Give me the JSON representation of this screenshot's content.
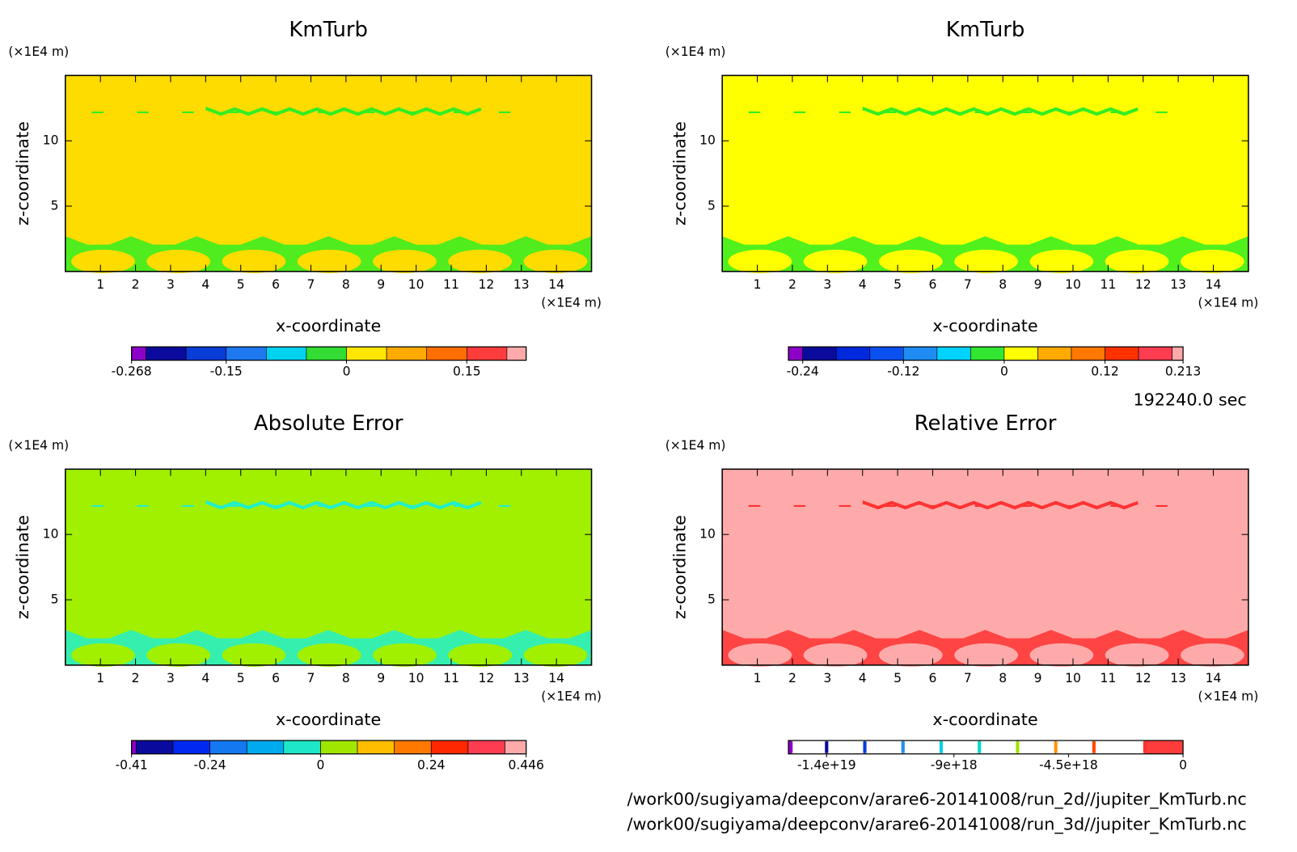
{
  "chart_data": [
    {
      "type": "contour",
      "title": "KmTurb",
      "xlabel": "x-coordinate",
      "ylabel": "z-coordinate",
      "x_unit": "(×1E4 m)",
      "y_unit": "(×1E4 m)",
      "xlim": [
        0,
        15
      ],
      "ylim": [
        0,
        15
      ],
      "xticks": [
        1,
        2,
        3,
        4,
        5,
        6,
        7,
        8,
        9,
        10,
        11,
        12,
        13,
        14
      ],
      "yticks": [
        5,
        10
      ],
      "background": "#ffdc00",
      "feature_color": "#33ee22",
      "colorbar": {
        "lim": [
          -0.268,
          0.224
        ],
        "levels": [
          -0.25,
          -0.2,
          -0.15,
          -0.1,
          -0.05,
          0,
          0.05,
          0.1,
          0.15,
          0.2
        ],
        "colors": [
          "#8c00c8",
          "#0a0a9c",
          "#0a3cd8",
          "#1e78f0",
          "#00d2f0",
          "#32dc32",
          "#ffe600",
          "#ffaa00",
          "#ff6e00",
          "#ff3c3c",
          "#ffaaaa"
        ],
        "ticks": [
          -0.268,
          -0.15,
          0,
          0.15
        ]
      }
    },
    {
      "type": "contour",
      "title": "KmTurb",
      "xlabel": "x-coordinate",
      "ylabel": "z-coordinate",
      "x_unit": "(×1E4 m)",
      "y_unit": "(×1E4 m)",
      "xlim": [
        0,
        15
      ],
      "ylim": [
        0,
        15
      ],
      "xticks": [
        1,
        2,
        3,
        4,
        5,
        6,
        7,
        8,
        9,
        10,
        11,
        12,
        13,
        14
      ],
      "yticks": [
        5,
        10
      ],
      "background": "#ffff00",
      "feature_color": "#33ee22",
      "colorbar": {
        "lim": [
          -0.257,
          0.213
        ],
        "levels": [
          -0.24,
          -0.2,
          -0.16,
          -0.12,
          -0.08,
          -0.04,
          0,
          0.04,
          0.08,
          0.12,
          0.16,
          0.2
        ],
        "colors": [
          "#8c00c8",
          "#0a0a9c",
          "#0028dc",
          "#0a50f0",
          "#1e8cf0",
          "#00d2ff",
          "#32e632",
          "#ffff00",
          "#ffaa00",
          "#ff7800",
          "#ff3200",
          "#ff3c50",
          "#ffaaaa"
        ],
        "ticks": [
          -0.24,
          -0.12,
          0,
          0.12,
          0.213
        ]
      }
    },
    {
      "type": "contour",
      "title": "Absolute Error",
      "xlabel": "x-coordinate",
      "ylabel": "z-coordinate",
      "x_unit": "(×1E4 m)",
      "y_unit": "(×1E4 m)",
      "xlim": [
        0,
        15
      ],
      "ylim": [
        0,
        15
      ],
      "xticks": [
        1,
        2,
        3,
        4,
        5,
        6,
        7,
        8,
        9,
        10,
        11,
        12,
        13,
        14
      ],
      "yticks": [
        5,
        10
      ],
      "background": "#a0f000",
      "feature_color": "#22eecc",
      "colorbar": {
        "lim": [
          -0.41,
          0.446
        ],
        "levels": [
          -0.4,
          -0.32,
          -0.24,
          -0.16,
          -0.08,
          0,
          0.08,
          0.16,
          0.24,
          0.32,
          0.4
        ],
        "colors": [
          "#8c00c8",
          "#0a0a9c",
          "#0028f0",
          "#1478f0",
          "#00aaee",
          "#1ee6c8",
          "#a0e600",
          "#ffbe00",
          "#ff7800",
          "#ff2800",
          "#ff3c50",
          "#ffaaaa"
        ],
        "ticks": [
          -0.41,
          -0.24,
          0,
          0.24,
          0.446
        ]
      }
    },
    {
      "type": "contour",
      "title": "Relative Error",
      "xlabel": "x-coordinate",
      "ylabel": "z-coordinate",
      "x_unit": "(×1E4 m)",
      "y_unit": "(×1E4 m)",
      "xlim": [
        0,
        15
      ],
      "ylim": [
        0,
        15
      ],
      "xticks": [
        1,
        2,
        3,
        4,
        5,
        6,
        7,
        8,
        9,
        10,
        11,
        12,
        13,
        14
      ],
      "yticks": [
        5,
        10
      ],
      "background": "#ffaaaa",
      "feature_color": "#ff3333",
      "colorbar": {
        "lim": [
          -1.55e+19,
          0
        ],
        "levels": [
          -1.54e+19,
          -1.4e+19,
          -1.25e+19,
          -1.1e+19,
          -9.5e+18,
          -8e+18,
          -6.5e+18,
          -5e+18,
          -3.5e+18,
          -1.5e+18
        ],
        "colors": [
          "#8c00c8",
          "#ffffff",
          "#ffffff",
          "#ffffff",
          "#ffffff",
          "#ffffff",
          "#ffffff",
          "#ffffff",
          "#ffffff",
          "#ffffff",
          "#ff3c3c"
        ],
        "boundary_colors": [
          "#8c00c8",
          "#0a0a9c",
          "#0a3cd8",
          "#1e90f0",
          "#00d2e6",
          "#00dcc8",
          "#a0e600",
          "#ff9600",
          "#ff4600",
          "#ff3232"
        ],
        "ticks": [
          {
            "value": -1.4e+19,
            "label": "-1.4e+19"
          },
          {
            "value": -9e+18,
            "label": "-9e+18"
          },
          {
            "value": -4.5e+18,
            "label": "-4.5e+18"
          },
          0
        ]
      }
    }
  ],
  "time": "192240.0 sec",
  "files": [
    "/work00/sugiyama/deepconv/arare6-20141008/run_2d//jupiter_KmTurb.nc",
    "/work00/sugiyama/deepconv/arare6-20141008/run_3d//jupiter_KmTurb.nc"
  ]
}
